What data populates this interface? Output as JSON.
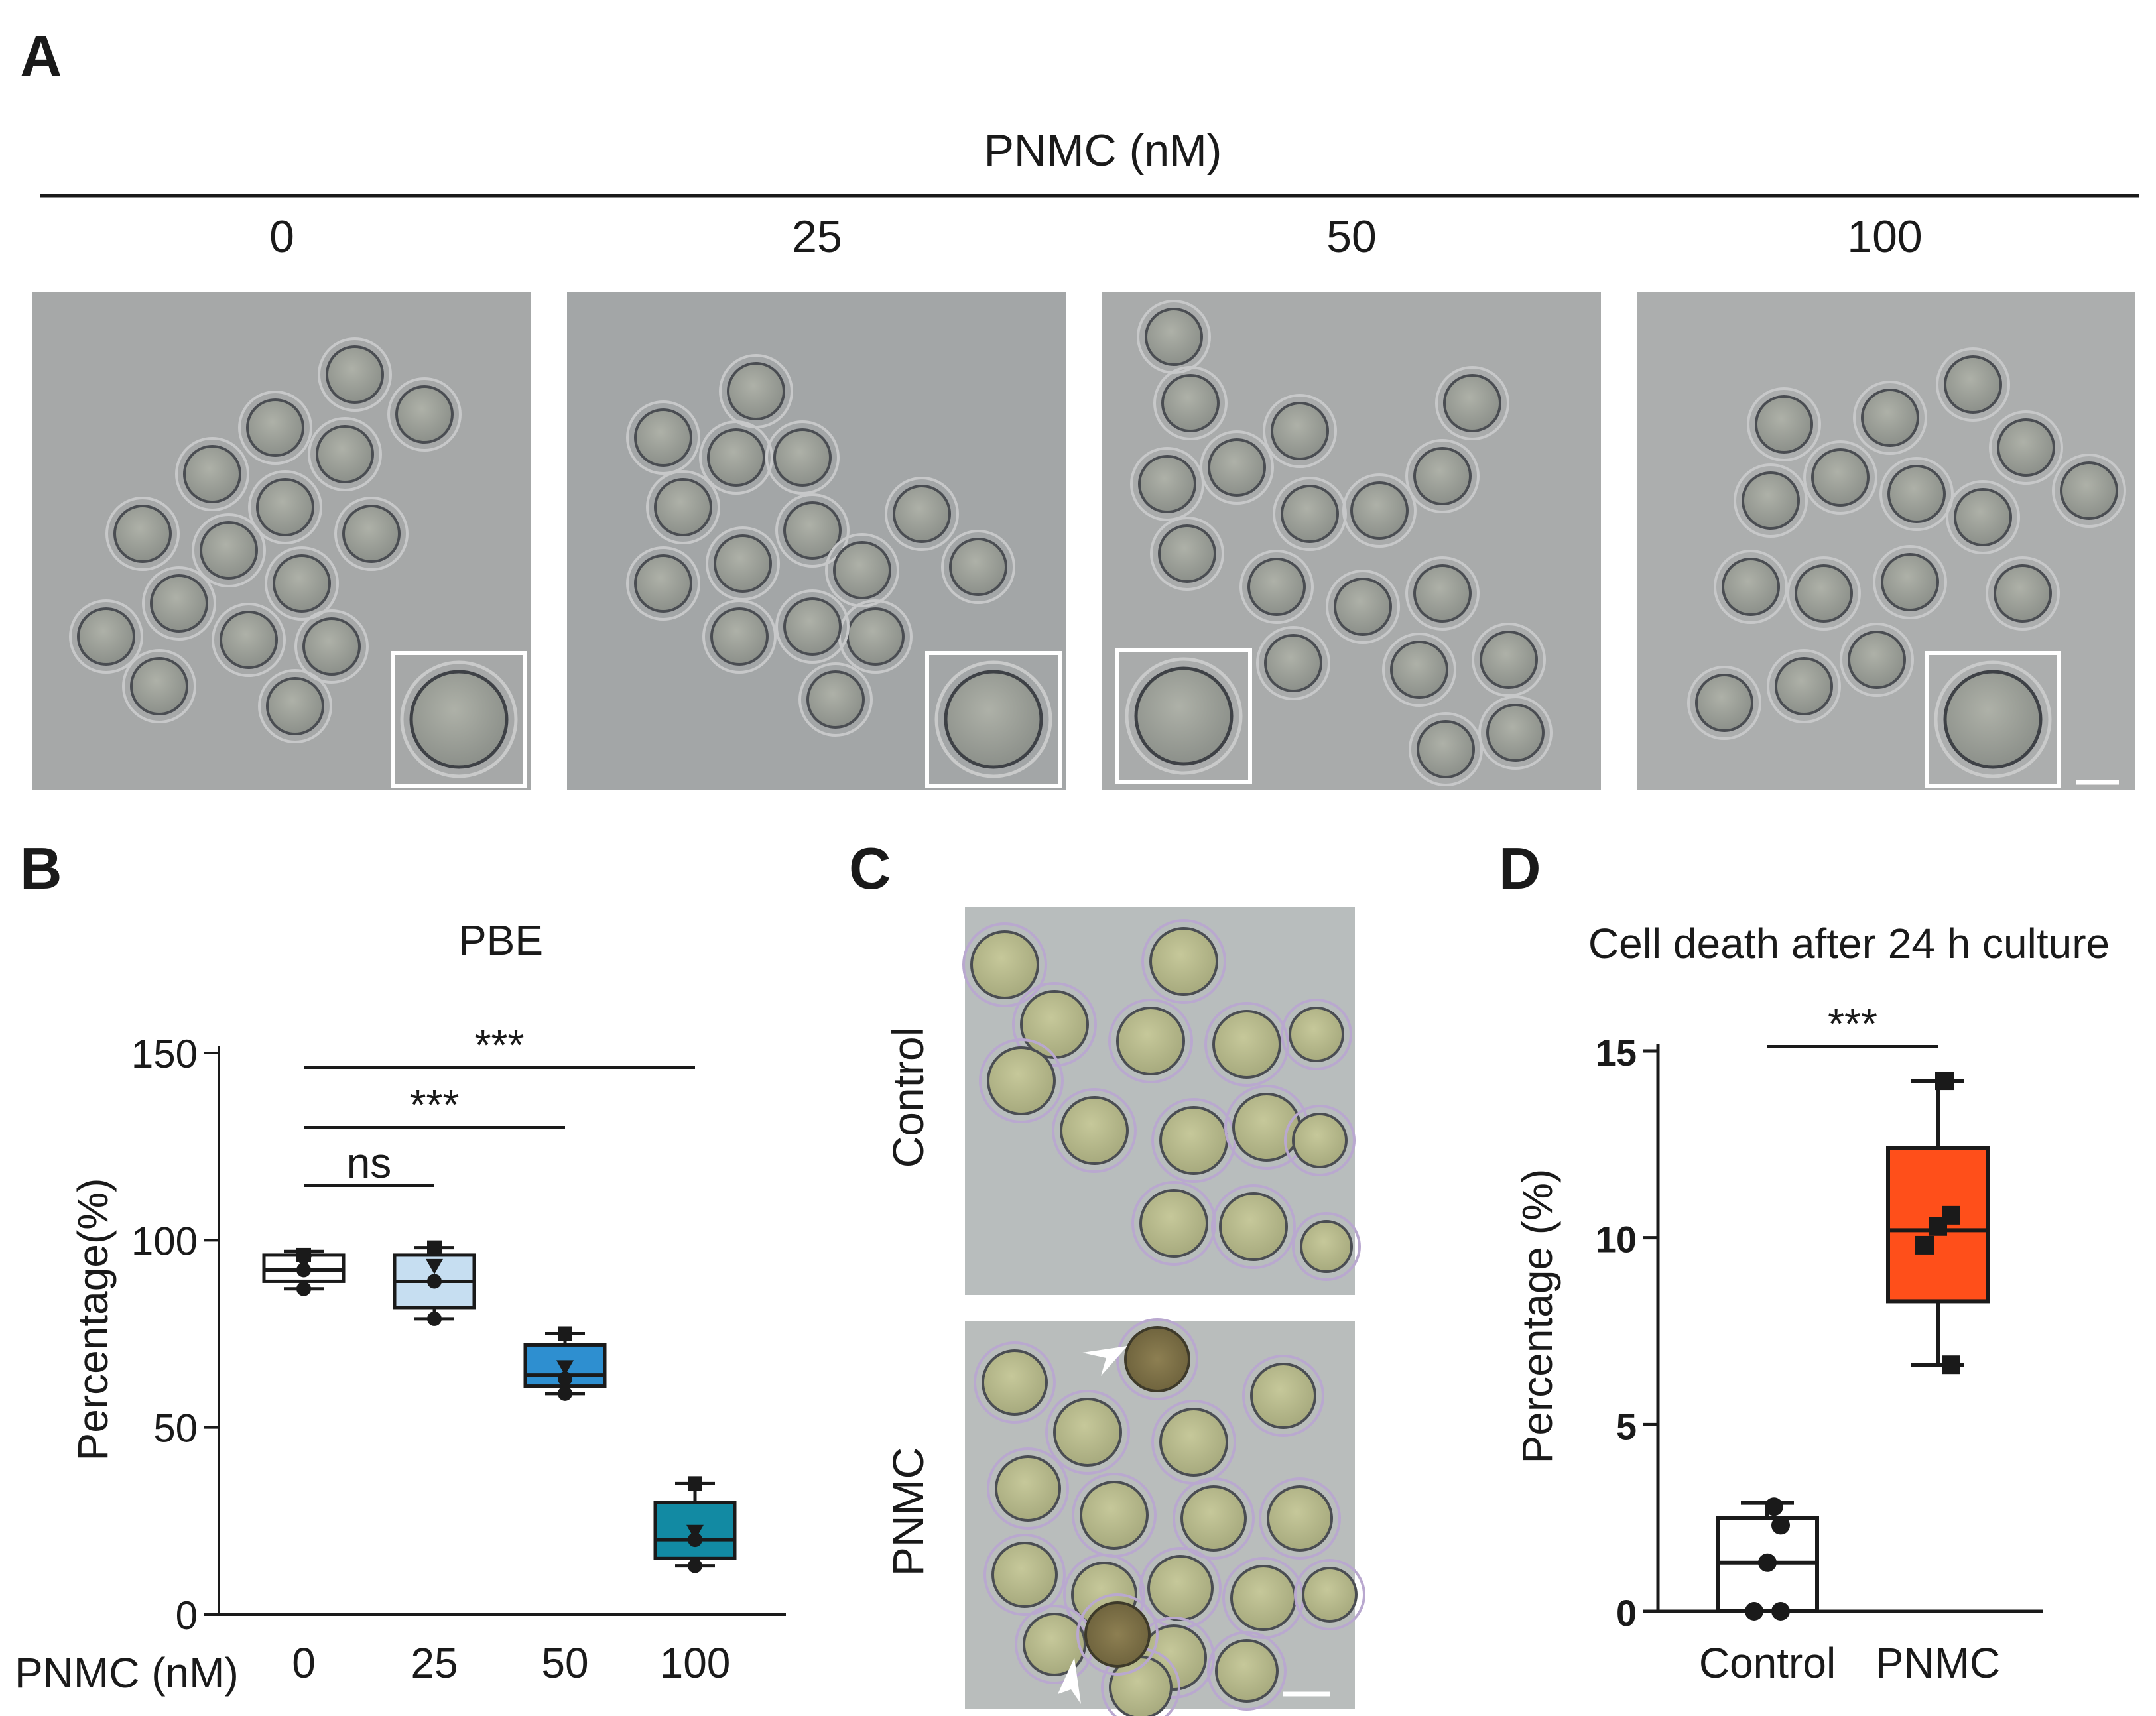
{
  "panels": {
    "A": {
      "letter": "A",
      "header": "PNMC (nM)",
      "concentrations": [
        "0",
        "25",
        "50",
        "100"
      ]
    },
    "B": {
      "letter": "B",
      "title": "PBE",
      "ylabel": "Percentage(%)",
      "xlabel": "PNMC (nM)",
      "y_ticks": [
        "0",
        "50",
        "100",
        "150"
      ],
      "categories": [
        "0",
        "25",
        "50",
        "100"
      ],
      "significance": [
        {
          "label": "ns",
          "from": "0",
          "to": "25"
        },
        {
          "label": "***",
          "from": "0",
          "to": "50"
        },
        {
          "label": "***",
          "from": "0",
          "to": "100"
        }
      ]
    },
    "C": {
      "letter": "C",
      "rows": [
        "Control",
        "PNMC"
      ]
    },
    "D": {
      "letter": "D",
      "title": "Cell death after 24 h culture",
      "ylabel": "Percentage (%)",
      "y_ticks": [
        "0",
        "5",
        "10",
        "15"
      ],
      "categories": [
        "Control",
        "PNMC"
      ],
      "significance": [
        {
          "label": "***",
          "from": "Control",
          "to": "PNMC"
        }
      ]
    }
  },
  "chart_data": [
    {
      "type": "box",
      "title": "PBE",
      "xlabel": "PNMC (nM)",
      "ylabel": "Percentage(%)",
      "ylim": [
        0,
        150
      ],
      "categories": [
        "0",
        "25",
        "50",
        "100"
      ],
      "boxes": [
        {
          "category": "0",
          "min": 87,
          "q1": 89,
          "median": 92,
          "q3": 96,
          "max": 97,
          "points": [
            96,
            94,
            92,
            87
          ],
          "color": "#ffffff"
        },
        {
          "category": "25",
          "min": 79,
          "q1": 82,
          "median": 89,
          "q3": 96,
          "max": 98,
          "points": [
            98,
            93,
            89,
            79
          ],
          "color": "#c6def1"
        },
        {
          "category": "50",
          "min": 59,
          "q1": 61,
          "median": 64,
          "q3": 72,
          "max": 75,
          "points": [
            75,
            66,
            63,
            59
          ],
          "color": "#2e8fd0"
        },
        {
          "category": "100",
          "min": 13,
          "q1": 15,
          "median": 20,
          "q3": 30,
          "max": 35,
          "points": [
            35,
            22,
            20,
            13
          ],
          "color": "#128aa3"
        }
      ]
    },
    {
      "type": "box",
      "title": "Cell death after 24 h culture",
      "ylabel": "Percentage (%)",
      "ylim": [
        0,
        15
      ],
      "categories": [
        "Control",
        "PNMC"
      ],
      "boxes": [
        {
          "category": "Control",
          "min": 0,
          "q1": 0,
          "median": 1.3,
          "q3": 2.5,
          "max": 2.9,
          "points": [
            2.8,
            2.3,
            1.3,
            0,
            0
          ],
          "color": "#ffffff"
        },
        {
          "category": "PNMC",
          "min": 6.6,
          "q1": 8.3,
          "median": 10.2,
          "q3": 12.4,
          "max": 14.2,
          "points": [
            14.2,
            10.6,
            10.3,
            9.8,
            6.6
          ],
          "color": "#ff4f1a"
        }
      ]
    }
  ]
}
